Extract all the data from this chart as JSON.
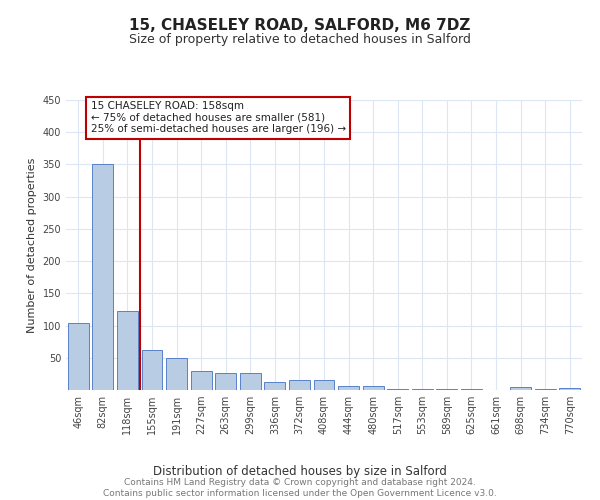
{
  "title1": "15, CHASELEY ROAD, SALFORD, M6 7DZ",
  "title2": "Size of property relative to detached houses in Salford",
  "xlabel": "Distribution of detached houses by size in Salford",
  "ylabel": "Number of detached properties",
  "categories": [
    "46sqm",
    "82sqm",
    "118sqm",
    "155sqm",
    "191sqm",
    "227sqm",
    "263sqm",
    "299sqm",
    "336sqm",
    "372sqm",
    "408sqm",
    "444sqm",
    "480sqm",
    "517sqm",
    "553sqm",
    "589sqm",
    "625sqm",
    "661sqm",
    "698sqm",
    "734sqm",
    "770sqm"
  ],
  "values": [
    104,
    351,
    122,
    62,
    49,
    30,
    27,
    26,
    13,
    16,
    16,
    6,
    6,
    2,
    1,
    1,
    1,
    0,
    4,
    1,
    3
  ],
  "bar_color": "#b8cce4",
  "bar_edge_color": "#4472c4",
  "vline_color": "#c00000",
  "annotation_text": "15 CHASELEY ROAD: 158sqm\n← 75% of detached houses are smaller (581)\n25% of semi-detached houses are larger (196) →",
  "annotation_box_color": "#ffffff",
  "annotation_box_edgecolor": "#c00000",
  "ylim": [
    0,
    450
  ],
  "yticks": [
    0,
    50,
    100,
    150,
    200,
    250,
    300,
    350,
    400,
    450
  ],
  "background_color": "#ffffff",
  "grid_color": "#dde7f3",
  "footer_text": "Contains HM Land Registry data © Crown copyright and database right 2024.\nContains public sector information licensed under the Open Government Licence v3.0.",
  "title1_fontsize": 11,
  "title2_fontsize": 9,
  "xlabel_fontsize": 8.5,
  "ylabel_fontsize": 8,
  "tick_fontsize": 7,
  "annotation_fontsize": 7.5,
  "footer_fontsize": 6.5
}
